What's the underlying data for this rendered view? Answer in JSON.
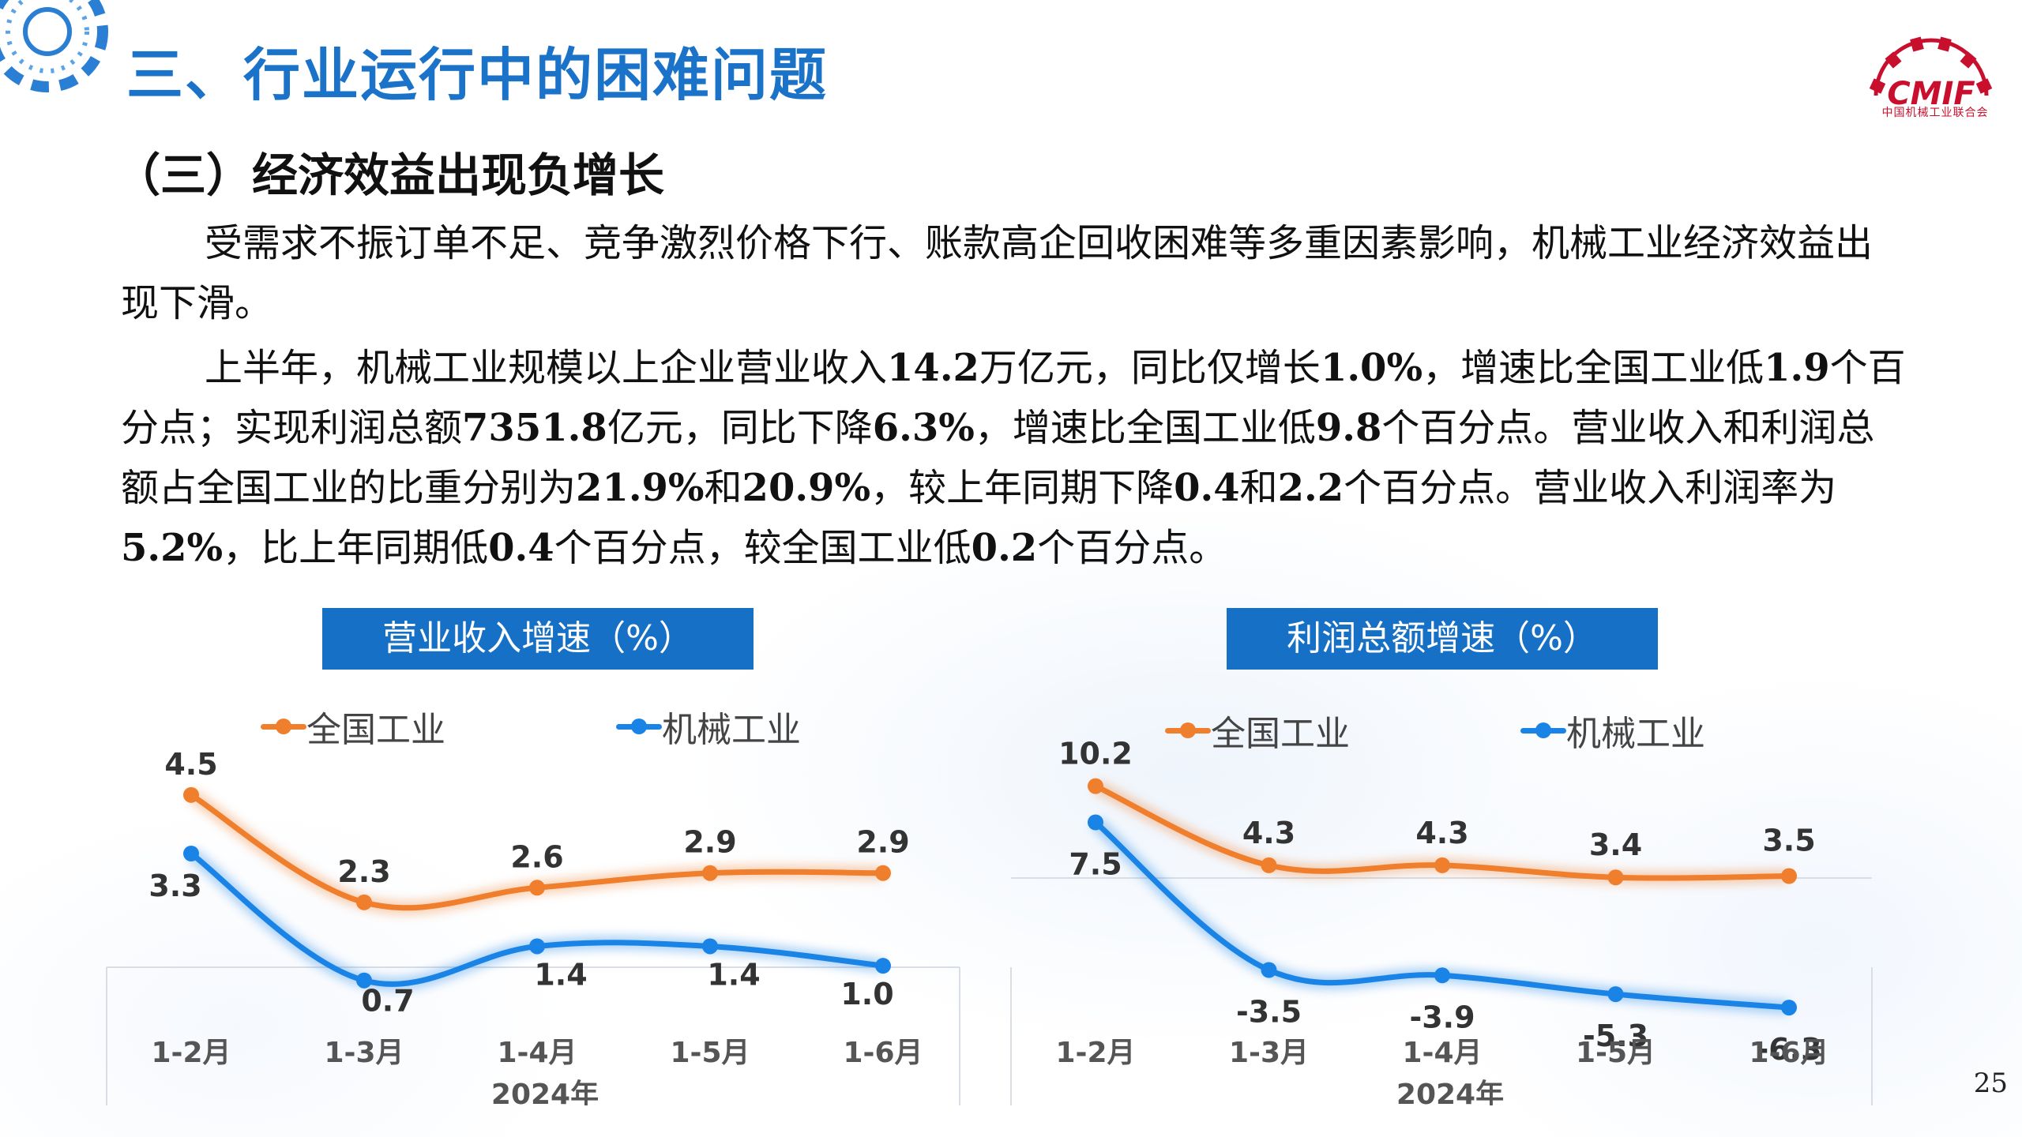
{
  "header": {
    "title": "三、行业运行中的困难问题",
    "logo_text": "CMIF",
    "logo_caption": "中国机械工业联合会"
  },
  "section": {
    "title": "（三）经济效益出现负增长"
  },
  "paragraphs": {
    "p1": "受需求不振订单不足、竞争激烈价格下行、账款高企回收困难等多重因素影响，机械工业经济效益出现下滑。",
    "p2_parts": [
      {
        "t": "上半年，机械工业规模以上企业营业收入",
        "b": false
      },
      {
        "t": "14.2",
        "b": true
      },
      {
        "t": "万亿元，同比仅增长",
        "b": false
      },
      {
        "t": "1.0%",
        "b": true
      },
      {
        "t": "，增速比全国工业低",
        "b": false
      },
      {
        "t": "1.9",
        "b": true
      },
      {
        "t": "个百分点；实现利润总额",
        "b": false
      },
      {
        "t": "7351.8",
        "b": true
      },
      {
        "t": "亿元，同比下降",
        "b": false
      },
      {
        "t": "6.3%",
        "b": true
      },
      {
        "t": "，增速比全国工业低",
        "b": false
      },
      {
        "t": "9.8",
        "b": true
      },
      {
        "t": "个百分点。营业收入和利润总额占全国工业的比重分别为",
        "b": false
      },
      {
        "t": "21.9%",
        "b": true
      },
      {
        "t": "和",
        "b": false
      },
      {
        "t": "20.9%",
        "b": true
      },
      {
        "t": "，较上年同期下降",
        "b": false
      },
      {
        "t": "0.4",
        "b": true
      },
      {
        "t": "和",
        "b": false
      },
      {
        "t": "2.2",
        "b": true
      },
      {
        "t": "个百分点。营业收入利润率为",
        "b": false
      },
      {
        "t": "5.2%",
        "b": true
      },
      {
        "t": "，比上年同期低",
        "b": false
      },
      {
        "t": "0.4",
        "b": true
      },
      {
        "t": "个百分点，较全国工业低",
        "b": false
      },
      {
        "t": "0.2",
        "b": true
      },
      {
        "t": "个百分点。",
        "b": false
      }
    ]
  },
  "colors": {
    "title_blue": "#1a73c8",
    "chart_title_bg": "#1670c6",
    "national": "#f07f2d",
    "machinery": "#1a84e6",
    "logo_red": "#c8102e"
  },
  "chart_data": [
    {
      "type": "line",
      "title": "营业收入增速（%）",
      "categories": [
        "1-2月",
        "1-3月",
        "1-4月",
        "1-5月",
        "1-6月"
      ],
      "xlabel": "2024年",
      "series": [
        {
          "name": "全国工业",
          "values": [
            4.5,
            2.3,
            2.6,
            2.9,
            2.9
          ],
          "labels": [
            "4.5",
            "2.3",
            "2.6",
            "2.9",
            "2.9"
          ]
        },
        {
          "name": "机械工业",
          "values": [
            3.3,
            0.7,
            1.4,
            1.4,
            1.0
          ],
          "labels": [
            "3.3",
            "0.7",
            "1.4",
            "1.4",
            "1.0"
          ]
        }
      ],
      "ylim": [
        0,
        5.5
      ],
      "legend": "top",
      "grid": false
    },
    {
      "type": "line",
      "title": "利润总额增速（%）",
      "categories": [
        "1-2月",
        "1-3月",
        "1-4月",
        "1-5月",
        "1-6月"
      ],
      "xlabel": "2024年",
      "series": [
        {
          "name": "全国工业",
          "values": [
            10.2,
            4.3,
            4.3,
            3.4,
            3.5
          ],
          "labels": [
            "10.2",
            "4.3",
            "4.3",
            "3.4",
            "3.5"
          ]
        },
        {
          "name": "机械工业",
          "values": [
            7.5,
            -3.5,
            -3.9,
            -5.3,
            -6.3
          ],
          "labels": [
            "7.5",
            "-3.5",
            "-3.9",
            "-5.3",
            "-6.3"
          ]
        }
      ],
      "ylim": [
        -8,
        12
      ],
      "legend": "top",
      "grid": false
    }
  ],
  "page": {
    "number": "25"
  }
}
